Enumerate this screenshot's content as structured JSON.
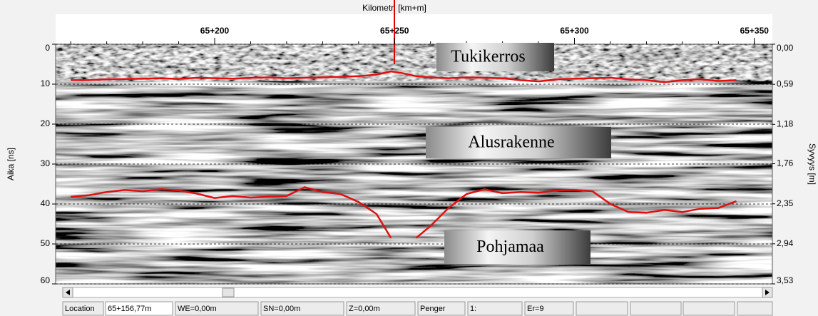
{
  "chart_data": {
    "type": "line",
    "xlabel": "Kilometri [km+m]",
    "ylabel": "Aika [ns]",
    "y2label": "Syvyys [m]",
    "xlim": [
      65155.8,
      65355
    ],
    "xticks": [
      {
        "value": 65200,
        "label": "65+200"
      },
      {
        "value": 65250,
        "label": "65+250"
      },
      {
        "value": 65300,
        "label": "65+300"
      },
      {
        "value": 65350,
        "label": "65+350"
      }
    ],
    "ylim": [
      0,
      60
    ],
    "yticks": [
      0,
      10,
      20,
      30,
      40,
      50,
      60
    ],
    "y2lim": [
      0,
      3.53
    ],
    "y2ticks": [
      {
        "value": 0,
        "label": "0,00"
      },
      {
        "value": 0.59,
        "label": "0,59"
      },
      {
        "value": 1.18,
        "label": "1,18"
      },
      {
        "value": 1.76,
        "label": "1,76"
      },
      {
        "value": 2.35,
        "label": "2,35"
      },
      {
        "value": 2.94,
        "label": "2,94"
      },
      {
        "value": 3.53,
        "label": "3,53"
      }
    ],
    "grid": true,
    "x": [
      65160,
      65165,
      65170,
      65175,
      65180,
      65185,
      65190,
      65195,
      65200,
      65205,
      65210,
      65215,
      65220,
      65225,
      65230,
      65235,
      65240,
      65245,
      65249,
      65252,
      65256,
      65260,
      65265,
      65270,
      65275,
      65280,
      65285,
      65290,
      65295,
      65300,
      65305,
      65310,
      65315,
      65320,
      65325,
      65330,
      65335,
      65340,
      65345
    ],
    "series": [
      {
        "color": "#e01010",
        "values": [
          9,
          9,
          8.8,
          8.7,
          8.6,
          8.5,
          8.7,
          8.4,
          8.5,
          8.6,
          8.4,
          8.3,
          8.5,
          8.4,
          8.3,
          8.2,
          8.0,
          7.6,
          6.8,
          7.2,
          8.0,
          8.3,
          8.5,
          8.3,
          8.4,
          8.5,
          9.0,
          9.3,
          8.8,
          8.6,
          8.5,
          8.4,
          8.8,
          9.0,
          9.5,
          9.0,
          8.8,
          9.2,
          9.0
        ]
      },
      {
        "color": "#e01010",
        "values": [
          38.2,
          37.8,
          37.0,
          36.5,
          36.8,
          36.3,
          36.6,
          37.4,
          38.5,
          38.0,
          38.4,
          38.2,
          38.0,
          35.8,
          37.0,
          37.5,
          39.5,
          42.5,
          48.5,
          null,
          48.5,
          45.5,
          41,
          37.5,
          36.3,
          37.3,
          37,
          37.2,
          36.6,
          36.5,
          36.8,
          40,
          42,
          42.2,
          41.5,
          42,
          41.2,
          41,
          39.3
        ]
      }
    ],
    "annotations": [
      "Tukikerros",
      "Alusrakenne",
      "Pohjamaa"
    ]
  },
  "statusbar": [
    "Location",
    "65+156,77m",
    "WE=0,00m",
    "SN=0,00m",
    "Z=0,00m",
    "Penger",
    "1:",
    "Er=9"
  ]
}
